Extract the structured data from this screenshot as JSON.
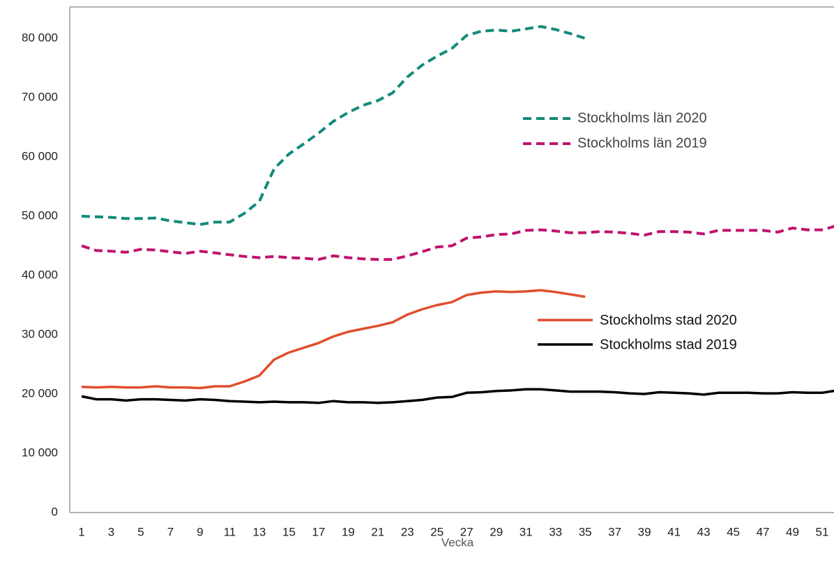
{
  "chart_data": {
    "type": "line",
    "x_label": "Vecka",
    "categories": [
      1,
      null,
      3,
      null,
      5,
      null,
      7,
      null,
      9,
      null,
      11,
      null,
      13,
      null,
      15,
      null,
      17,
      null,
      19,
      null,
      21,
      null,
      23,
      null,
      25,
      null,
      27,
      null,
      29,
      null,
      31,
      null,
      33,
      null,
      35,
      null,
      37,
      null,
      39,
      null,
      41,
      null,
      43,
      null,
      45,
      null,
      47,
      null,
      49,
      null,
      51,
      null
    ],
    "ylim": [
      0,
      85000
    ],
    "yticks": [
      {
        "value": 0,
        "label": "0"
      },
      {
        "value": 10000,
        "label": "10 000"
      },
      {
        "value": 20000,
        "label": "20 000"
      },
      {
        "value": 30000,
        "label": "30 000"
      },
      {
        "value": 40000,
        "label": "40 000"
      },
      {
        "value": 50000,
        "label": "50 000"
      },
      {
        "value": 60000,
        "label": "60 000"
      },
      {
        "value": 70000,
        "label": "70 000"
      },
      {
        "value": 80000,
        "label": "80 000"
      }
    ],
    "grid": false,
    "series": [
      {
        "name": "Stockholms län 2020",
        "color": "#138a7a",
        "dashed": true,
        "values": [
          50000,
          49900,
          49800,
          49600,
          49600,
          49700,
          49200,
          48900,
          48600,
          49000,
          49000,
          50500,
          52500,
          58000,
          60500,
          62200,
          64000,
          66000,
          67500,
          68700,
          69500,
          70800,
          73500,
          75500,
          77000,
          78300,
          80500,
          81200,
          81400,
          81200,
          81600,
          82000,
          81500,
          80800,
          80000,
          null,
          null,
          null,
          null,
          null,
          null,
          null,
          null,
          null,
          null,
          null,
          null,
          null,
          null,
          null,
          null,
          null
        ]
      },
      {
        "name": "Stockholms län 2019",
        "color": "#c0136e",
        "dashed": true,
        "values": [
          45000,
          44200,
          44100,
          43900,
          44400,
          44300,
          44000,
          43700,
          44100,
          43800,
          43500,
          43200,
          43000,
          43200,
          43000,
          42900,
          42700,
          43300,
          43000,
          42800,
          42700,
          42700,
          43300,
          44000,
          44800,
          45000,
          46300,
          46500,
          46900,
          47000,
          47600,
          47700,
          47500,
          47200,
          47200,
          47400,
          47300,
          47100,
          46800,
          47400,
          47400,
          47300,
          47000,
          47600,
          47600,
          47600,
          47600,
          47300,
          48000,
          47700,
          47700,
          48400
        ]
      },
      {
        "name": "Stockholms stad 2020",
        "color": "#e04e2e",
        "dashed": false,
        "values": [
          21200,
          21100,
          21200,
          21100,
          21100,
          21300,
          21100,
          21100,
          21000,
          21300,
          21300,
          22100,
          23100,
          25800,
          27000,
          27800,
          28600,
          29700,
          30500,
          31000,
          31500,
          32100,
          33400,
          34300,
          35000,
          35500,
          36700,
          37100,
          37300,
          37200,
          37300,
          37500,
          37200,
          36800,
          36400,
          null,
          null,
          null,
          null,
          null,
          null,
          null,
          null,
          null,
          null,
          null,
          null,
          null,
          null,
          null,
          null,
          null
        ]
      },
      {
        "name": "Stockholms stad 2019",
        "color": "#000000",
        "dashed": false,
        "values": [
          19600,
          19100,
          19100,
          18900,
          19100,
          19100,
          19000,
          18900,
          19100,
          19000,
          18800,
          18700,
          18600,
          18700,
          18600,
          18600,
          18500,
          18800,
          18600,
          18600,
          18500,
          18600,
          18800,
          19000,
          19400,
          19500,
          20200,
          20300,
          20500,
          20600,
          20800,
          20800,
          20600,
          20400,
          20400,
          20400,
          20300,
          20100,
          20000,
          20300,
          20200,
          20100,
          19900,
          20200,
          20200,
          20200,
          20100,
          20100,
          20300,
          20200,
          20200,
          20600
        ]
      }
    ]
  }
}
